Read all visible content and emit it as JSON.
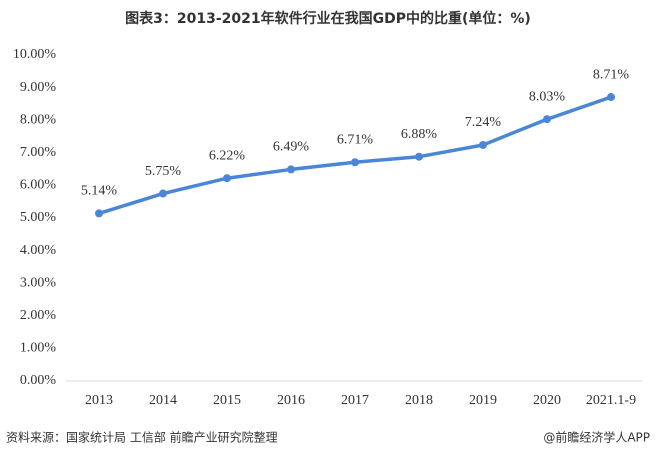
{
  "chart_data": {
    "type": "line",
    "title": "图表3：2013-2021年软件行业在我国GDP中的比重(单位：%)",
    "categories": [
      "2013",
      "2014",
      "2015",
      "2016",
      "2017",
      "2018",
      "2019",
      "2020",
      "2021.1-9"
    ],
    "series": [
      {
        "name": "软件行业在我国GDP中的比重",
        "color": "#4a86d8",
        "values": [
          5.14,
          5.75,
          6.22,
          6.49,
          6.71,
          6.88,
          7.24,
          8.03,
          8.71
        ],
        "value_labels": [
          "5.14%",
          "5.75%",
          "6.22%",
          "6.49%",
          "6.71%",
          "6.88%",
          "7.24%",
          "8.03%",
          "8.71%"
        ]
      }
    ],
    "ylim": [
      0,
      10
    ],
    "yticks": [
      {
        "value": 0,
        "label": "0.00%"
      },
      {
        "value": 1,
        "label": "1.00%"
      },
      {
        "value": 2,
        "label": "2.00%"
      },
      {
        "value": 3,
        "label": "3.00%"
      },
      {
        "value": 4,
        "label": "4.00%"
      },
      {
        "value": 5,
        "label": "5.00%"
      },
      {
        "value": 6,
        "label": "6.00%"
      },
      {
        "value": 7,
        "label": "7.00%"
      },
      {
        "value": 8,
        "label": "8.00%"
      },
      {
        "value": 9,
        "label": "9.00%"
      },
      {
        "value": 10,
        "label": "10.00%"
      }
    ],
    "grid": false,
    "source": "资料来源：国家统计局 工信部 前瞻产业研究院整理",
    "credit": "@前瞻经济学人APP"
  }
}
